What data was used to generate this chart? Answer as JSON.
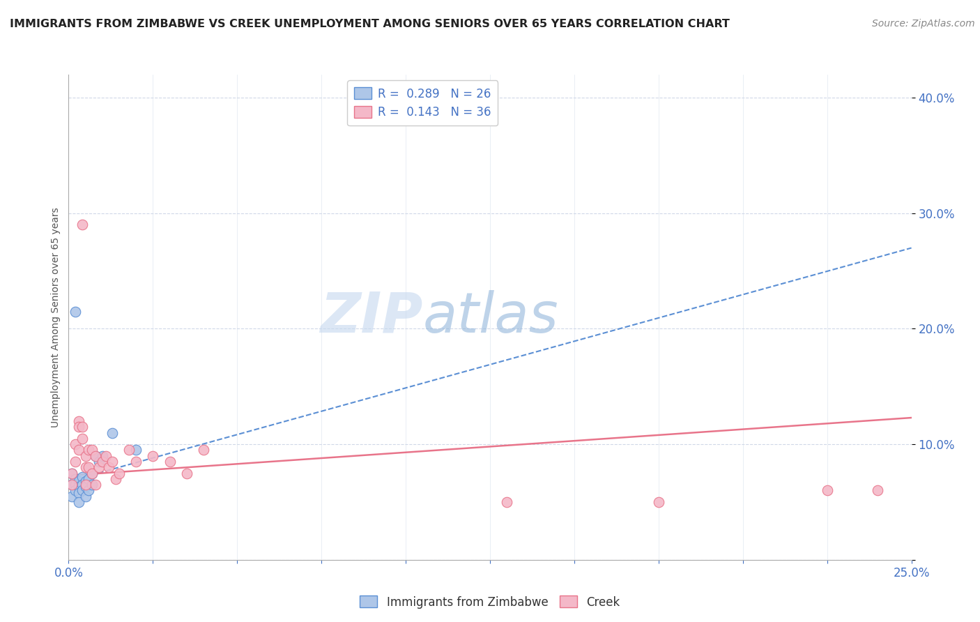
{
  "title": "IMMIGRANTS FROM ZIMBABWE VS CREEK UNEMPLOYMENT AMONG SENIORS OVER 65 YEARS CORRELATION CHART",
  "source": "Source: ZipAtlas.com",
  "ylabel": "Unemployment Among Seniors over 65 years",
  "xlim": [
    0.0,
    0.25
  ],
  "ylim": [
    0.0,
    0.42
  ],
  "xticks": [
    0.0,
    0.025,
    0.05,
    0.075,
    0.1,
    0.125,
    0.15,
    0.175,
    0.2,
    0.225,
    0.25
  ],
  "yticks": [
    0.0,
    0.1,
    0.2,
    0.3,
    0.4
  ],
  "ytick_labels": [
    "",
    "10.0%",
    "20.0%",
    "30.0%",
    "40.0%"
  ],
  "legend1_r": "0.289",
  "legend1_n": "26",
  "legend2_r": "0.143",
  "legend2_n": "36",
  "series1_color": "#aec6e8",
  "series2_color": "#f4b8c8",
  "line1_color": "#5b8fd4",
  "line2_color": "#e8748a",
  "watermark_zip": "ZIP",
  "watermark_atlas": "atlas",
  "watermark_color_zip": "#c5d8ef",
  "watermark_color_atlas": "#8ab0d8",
  "blue_points_x": [
    0.001,
    0.001,
    0.001,
    0.002,
    0.002,
    0.002,
    0.002,
    0.003,
    0.003,
    0.003,
    0.003,
    0.004,
    0.004,
    0.004,
    0.005,
    0.005,
    0.005,
    0.006,
    0.006,
    0.007,
    0.007,
    0.008,
    0.009,
    0.01,
    0.013,
    0.02
  ],
  "blue_points_y": [
    0.075,
    0.065,
    0.055,
    0.07,
    0.065,
    0.06,
    0.215,
    0.068,
    0.063,
    0.058,
    0.05,
    0.072,
    0.065,
    0.06,
    0.068,
    0.063,
    0.055,
    0.07,
    0.06,
    0.075,
    0.065,
    0.09,
    0.085,
    0.09,
    0.11,
    0.095
  ],
  "pink_points_x": [
    0.001,
    0.001,
    0.002,
    0.002,
    0.003,
    0.003,
    0.003,
    0.004,
    0.004,
    0.005,
    0.005,
    0.005,
    0.006,
    0.006,
    0.007,
    0.007,
    0.008,
    0.008,
    0.009,
    0.01,
    0.011,
    0.012,
    0.013,
    0.014,
    0.015,
    0.018,
    0.02,
    0.025,
    0.03,
    0.035,
    0.04,
    0.13,
    0.175,
    0.225,
    0.24,
    0.004
  ],
  "pink_points_y": [
    0.075,
    0.065,
    0.1,
    0.085,
    0.12,
    0.115,
    0.095,
    0.115,
    0.105,
    0.09,
    0.08,
    0.065,
    0.095,
    0.08,
    0.095,
    0.075,
    0.09,
    0.065,
    0.08,
    0.085,
    0.09,
    0.08,
    0.085,
    0.07,
    0.075,
    0.095,
    0.085,
    0.09,
    0.085,
    0.075,
    0.095,
    0.05,
    0.05,
    0.06,
    0.06,
    0.29
  ],
  "blue_trend_x0": 0.0,
  "blue_trend_y0": 0.068,
  "blue_trend_x1": 0.25,
  "blue_trend_y1": 0.27,
  "pink_trend_x0": 0.0,
  "pink_trend_y0": 0.073,
  "pink_trend_x1": 0.25,
  "pink_trend_y1": 0.123
}
